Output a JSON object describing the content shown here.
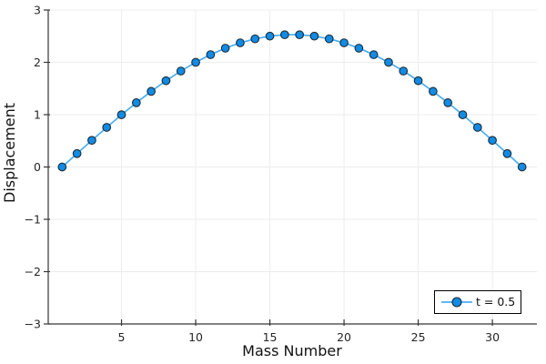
{
  "chart_data": {
    "type": "line",
    "title": "",
    "xlabel": "Mass Number",
    "ylabel": "Displacement",
    "xlim": [
      0.06,
      33.0
    ],
    "ylim": [
      -3,
      3
    ],
    "xticks": [
      5,
      10,
      15,
      20,
      25,
      30
    ],
    "xtick_labels": [
      "5",
      "10",
      "15",
      "20",
      "25",
      "30"
    ],
    "yticks": [
      -3,
      -2,
      -1,
      0,
      1,
      2,
      3
    ],
    "ytick_labels": [
      "−3",
      "−2",
      "−1",
      "0",
      "1",
      "2",
      "3"
    ],
    "grid": true,
    "legend_position": "bottom-right",
    "x": [
      1,
      2,
      3,
      4,
      5,
      6,
      7,
      8,
      9,
      10,
      11,
      12,
      13,
      14,
      15,
      16,
      17,
      18,
      19,
      20,
      21,
      22,
      23,
      24,
      25,
      26,
      27,
      28,
      29,
      30,
      31,
      32
    ],
    "series": [
      {
        "name": "t = 0.5",
        "values": [
          0.0,
          0.256,
          0.509,
          0.757,
          0.998,
          1.228,
          1.445,
          1.648,
          1.834,
          2.001,
          2.147,
          2.271,
          2.373,
          2.449,
          2.501,
          2.527,
          2.527,
          2.501,
          2.449,
          2.373,
          2.271,
          2.147,
          2.001,
          1.834,
          1.648,
          1.445,
          1.228,
          0.998,
          0.757,
          0.509,
          0.256,
          0.0
        ]
      }
    ],
    "colors": {
      "line": "#49aef2",
      "marker_fill": "#118be4",
      "marker_stroke": "#1c2b36",
      "grid": "#ededed",
      "axis": "#363636",
      "tick_label": "#262626",
      "background": "#ffffff",
      "legend_border": "#000000",
      "legend_background": "#ffffff"
    }
  }
}
